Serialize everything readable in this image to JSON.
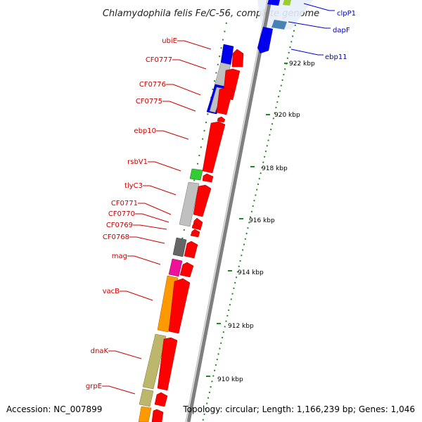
{
  "title": "Chlamydophila felis Fe/C-56, complete genome",
  "footer": {
    "accession": "Accession: NC_007899",
    "summary": "Topology: circular; Length: 1,166,239 bp; Genes: 1,046"
  },
  "colors": {
    "forward_cds": "#ff0000",
    "backbone": "#7f7f7f",
    "tick_mark": "#228b22",
    "label_red": "#cc0000",
    "label_blue": "#0000cc"
  },
  "genes_left": [
    {
      "label": "ubiE",
      "color": "#0000ee"
    },
    {
      "label": "CF0777",
      "color": "#c0c0c0"
    },
    {
      "label": "CF0776",
      "color": "#0000ee"
    },
    {
      "label": "CF0775",
      "color": "#c0c0c0"
    },
    {
      "label": "ebp10",
      "color": "#ffffff"
    },
    {
      "label": "rsbV1",
      "color": "#33cc33"
    },
    {
      "label": "tlyC3",
      "color": "#c0c0c0"
    },
    {
      "label": "CF0771",
      "color": "#c0c0c0"
    },
    {
      "label": "CF0770",
      "color": "#ffffff"
    },
    {
      "label": "CF0769",
      "color": "#ffffff"
    },
    {
      "label": "CF0768",
      "color": "#666666"
    },
    {
      "label": "mag",
      "color": "#ee1199"
    },
    {
      "label": "vacB",
      "color": "#ff9900"
    },
    {
      "label": "dnaK",
      "color": "#bdb76b"
    },
    {
      "label": "grpE",
      "color": "#bdb76b"
    }
  ],
  "genes_right": [
    {
      "label": "clpP1"
    },
    {
      "label": "dapF"
    },
    {
      "label": "ebp11"
    }
  ],
  "scale_ticks": [
    {
      "label": "922 kbp"
    },
    {
      "label": "920 kbp"
    },
    {
      "label": "918 kbp"
    },
    {
      "label": "916 kbp"
    },
    {
      "label": "914 kbp"
    },
    {
      "label": "912 kbp"
    },
    {
      "label": "910 kbp"
    }
  ]
}
